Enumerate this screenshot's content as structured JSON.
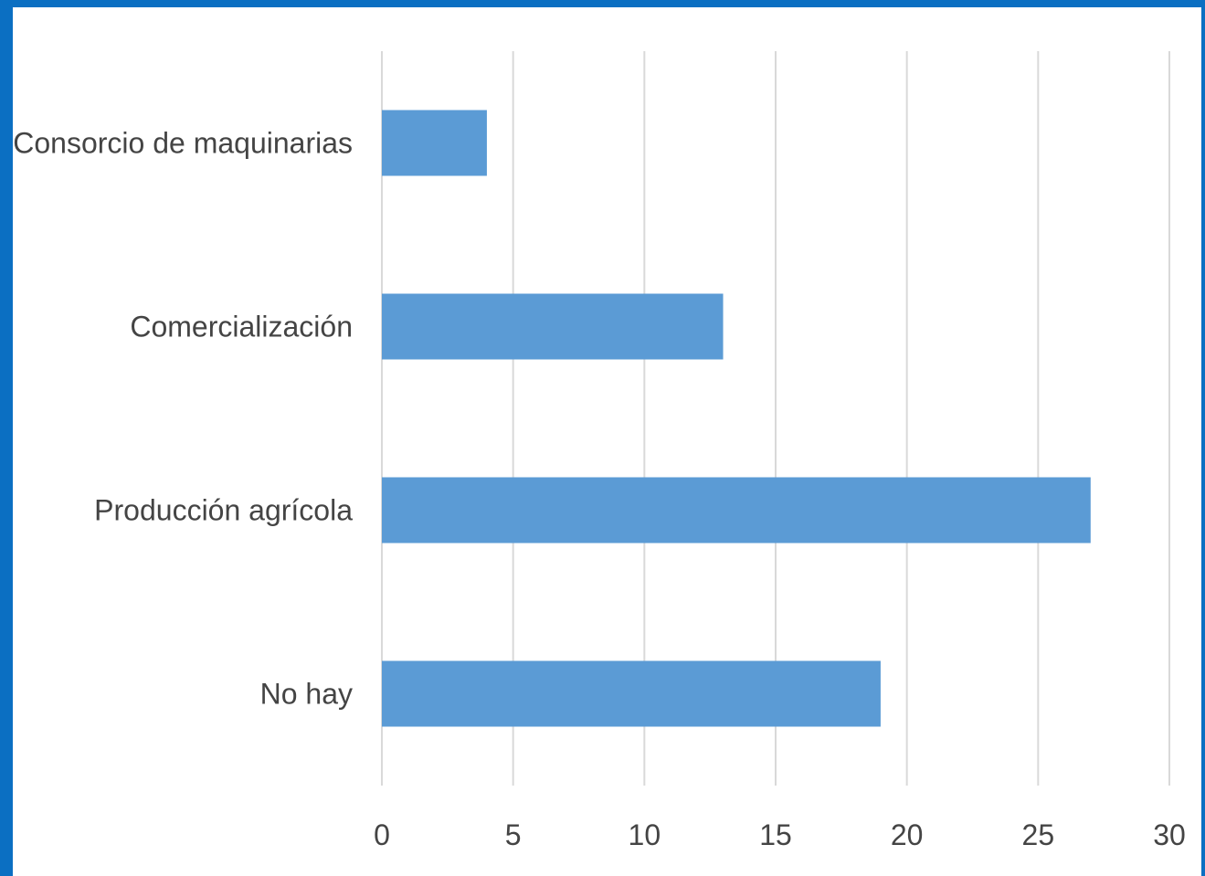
{
  "chart_data": {
    "type": "bar",
    "orientation": "horizontal",
    "categories": [
      "Consorcio de maquinarias",
      "Comercialización",
      "Producción agrícola",
      "No hay"
    ],
    "values": [
      4,
      13,
      27,
      19
    ],
    "x_ticks": [
      "0",
      "5",
      "10",
      "15",
      "20",
      "25",
      "30"
    ],
    "xlim": [
      0,
      30
    ],
    "grid": true,
    "legend": "none",
    "colors": {
      "bar": "#5b9bd5",
      "grid": "#d9d9d9",
      "frame": "#0b6fc2",
      "text": "#444444"
    }
  }
}
